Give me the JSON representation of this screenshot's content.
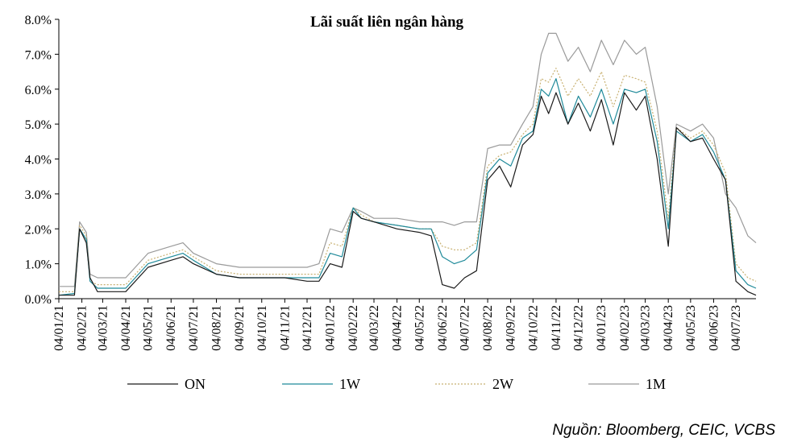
{
  "chart_data": {
    "type": "line",
    "title": "Lãi suất liên ngân hàng",
    "xlabel": "",
    "ylabel": "",
    "ylim": [
      0,
      8
    ],
    "y_ticks": [
      "0.0%",
      "1.0%",
      "2.0%",
      "3.0%",
      "4.0%",
      "5.0%",
      "6.0%",
      "7.0%",
      "8.0%"
    ],
    "x_ticks": [
      "04/01/21",
      "04/02/21",
      "04/03/21",
      "04/04/21",
      "04/05/21",
      "04/06/21",
      "04/07/21",
      "04/08/21",
      "04/09/21",
      "04/10/21",
      "04/11/21",
      "04/12/21",
      "04/01/22",
      "04/02/22",
      "04/03/22",
      "04/04/22",
      "04/05/22",
      "04/06/22",
      "04/07/22",
      "04/08/22",
      "04/09/22",
      "04/10/22",
      "04/11/22",
      "04/12/22",
      "04/01/23",
      "04/02/23",
      "04/03/23",
      "04/04/23",
      "04/05/23",
      "04/06/23",
      "04/07/23"
    ],
    "x": [
      "2021-01-04",
      "2021-01-25",
      "2021-02-01",
      "2021-02-10",
      "2021-02-15",
      "2021-02-25",
      "2021-03-04",
      "2021-04-04",
      "2021-05-04",
      "2021-06-04",
      "2021-06-20",
      "2021-07-04",
      "2021-08-04",
      "2021-09-04",
      "2021-10-04",
      "2021-11-04",
      "2021-12-04",
      "2021-12-20",
      "2022-01-04",
      "2022-01-20",
      "2022-02-04",
      "2022-02-15",
      "2022-03-04",
      "2022-04-04",
      "2022-05-04",
      "2022-05-20",
      "2022-06-04",
      "2022-06-20",
      "2022-07-04",
      "2022-07-20",
      "2022-08-04",
      "2022-08-20",
      "2022-09-04",
      "2022-09-20",
      "2022-10-04",
      "2022-10-15",
      "2022-10-25",
      "2022-11-04",
      "2022-11-20",
      "2022-12-04",
      "2022-12-20",
      "2023-01-04",
      "2023-01-20",
      "2023-02-04",
      "2023-02-20",
      "2023-03-04",
      "2023-03-20",
      "2023-04-04",
      "2023-04-15",
      "2023-05-04",
      "2023-05-20",
      "2023-06-04",
      "2023-06-20",
      "2023-07-04",
      "2023-07-20",
      "2023-07-31"
    ],
    "series": [
      {
        "name": "ON",
        "color": "#1a1a1a",
        "dash": "",
        "values": [
          0.1,
          0.1,
          2.0,
          1.6,
          0.6,
          0.2,
          0.2,
          0.2,
          0.9,
          1.1,
          1.2,
          1.0,
          0.7,
          0.6,
          0.6,
          0.6,
          0.5,
          0.5,
          1.0,
          0.9,
          2.5,
          2.3,
          2.2,
          2.0,
          1.9,
          1.8,
          0.4,
          0.3,
          0.6,
          0.8,
          3.4,
          3.8,
          3.2,
          4.4,
          4.7,
          5.8,
          5.3,
          5.9,
          5.0,
          5.6,
          4.8,
          5.7,
          4.4,
          5.9,
          5.4,
          5.8,
          4.0,
          1.5,
          4.9,
          4.5,
          4.6,
          4.0,
          3.4,
          0.5,
          0.2,
          0.1
        ]
      },
      {
        "name": "1W",
        "color": "#1f8a9a",
        "dash": "",
        "values": [
          0.1,
          0.15,
          2.0,
          1.7,
          0.5,
          0.3,
          0.3,
          0.3,
          1.0,
          1.2,
          1.3,
          1.1,
          0.7,
          0.6,
          0.6,
          0.6,
          0.6,
          0.6,
          1.3,
          1.2,
          2.6,
          2.3,
          2.2,
          2.1,
          2.0,
          2.0,
          1.2,
          1.0,
          1.1,
          1.4,
          3.6,
          4.0,
          3.8,
          4.6,
          4.8,
          6.0,
          5.8,
          6.3,
          5.0,
          5.8,
          5.2,
          6.0,
          5.0,
          6.0,
          5.9,
          6.0,
          4.5,
          2.0,
          4.8,
          4.5,
          4.7,
          4.2,
          3.4,
          0.8,
          0.4,
          0.3
        ]
      },
      {
        "name": "2W",
        "color": "#c8b070",
        "dash": "2,2",
        "values": [
          0.2,
          0.2,
          2.1,
          1.8,
          0.5,
          0.4,
          0.4,
          0.4,
          1.1,
          1.3,
          1.4,
          1.2,
          0.8,
          0.7,
          0.7,
          0.7,
          0.7,
          0.7,
          1.6,
          1.5,
          2.6,
          2.4,
          2.2,
          2.1,
          2.0,
          2.0,
          1.5,
          1.4,
          1.4,
          1.6,
          3.8,
          4.1,
          4.2,
          4.7,
          5.0,
          6.3,
          6.2,
          6.6,
          5.8,
          6.3,
          5.8,
          6.5,
          5.5,
          6.4,
          6.3,
          6.2,
          4.8,
          2.3,
          4.9,
          4.6,
          4.8,
          4.4,
          3.6,
          1.0,
          0.6,
          0.5
        ]
      },
      {
        "name": "1M",
        "color": "#9a9a9a",
        "dash": "",
        "values": [
          0.35,
          0.35,
          2.2,
          1.9,
          0.7,
          0.6,
          0.6,
          0.6,
          1.3,
          1.5,
          1.6,
          1.3,
          1.0,
          0.9,
          0.9,
          0.9,
          0.9,
          1.0,
          2.0,
          1.9,
          2.6,
          2.5,
          2.3,
          2.3,
          2.2,
          2.2,
          2.2,
          2.1,
          2.2,
          2.2,
          4.3,
          4.4,
          4.4,
          5.0,
          5.5,
          7.0,
          7.6,
          7.6,
          6.8,
          7.2,
          6.5,
          7.4,
          6.7,
          7.4,
          7.0,
          7.2,
          5.5,
          3.0,
          5.0,
          4.8,
          5.0,
          4.6,
          3.0,
          2.6,
          1.8,
          1.6
        ]
      }
    ],
    "legend": {
      "position": "bottom",
      "entries": [
        "ON",
        "1W",
        "2W",
        "1M"
      ]
    },
    "grid": false,
    "source": "Nguồn: Bloomberg, CEIC, VCBS"
  }
}
